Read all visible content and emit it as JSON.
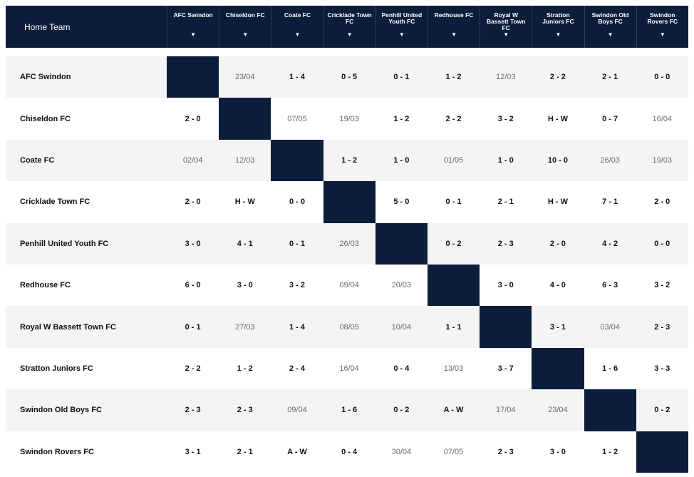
{
  "header": {
    "home_label": "Home Team",
    "columns": [
      "AFC Swindon",
      "Chiseldon FC",
      "Coate FC",
      "Cricklade Town FC",
      "Penhill United Youth FC",
      "Redhouse FC",
      "Royal W Bassett Town FC",
      "Stratton Juniors FC",
      "Swindon Old Boys FC",
      "Swindon Rovers FC"
    ],
    "sort_glyph": "▼"
  },
  "colors": {
    "navy": "#0b1d3a",
    "row_alt": "#f4f4f4",
    "date_text": "#6b6b6b"
  },
  "rows": [
    {
      "team": "AFC Swindon",
      "cells": [
        "",
        "23/04",
        "1 - 4",
        "0 - 5",
        "0 - 1",
        "1 - 2",
        "12/03",
        "2 - 2",
        "2 - 1",
        "0 - 0"
      ]
    },
    {
      "team": "Chiseldon FC",
      "cells": [
        "2 - 0",
        "",
        "07/05",
        "19/03",
        "1 - 2",
        "2 - 2",
        "3 - 2",
        "H - W",
        "0 - 7",
        "16/04"
      ]
    },
    {
      "team": "Coate FC",
      "cells": [
        "02/04",
        "12/03",
        "",
        "1 - 2",
        "1 - 0",
        "01/05",
        "1 - 0",
        "10 - 0",
        "26/03",
        "19/03"
      ]
    },
    {
      "team": "Cricklade Town FC",
      "cells": [
        "2 - 0",
        "H - W",
        "0 - 0",
        "",
        "5 - 0",
        "0 - 1",
        "2 - 1",
        "H - W",
        "7 - 1",
        "2 - 0"
      ]
    },
    {
      "team": "Penhill United Youth FC",
      "cells": [
        "3 - 0",
        "4 - 1",
        "0 - 1",
        "26/03",
        "",
        "0 - 2",
        "2 - 3",
        "2 - 0",
        "4 - 2",
        "0 - 0"
      ]
    },
    {
      "team": "Redhouse FC",
      "cells": [
        "6 - 0",
        "3 - 0",
        "3 - 2",
        "09/04",
        "20/03",
        "",
        "3 - 0",
        "4 - 0",
        "6 - 3",
        "3 - 2"
      ]
    },
    {
      "team": "Royal W Bassett Town FC",
      "cells": [
        "0 - 1",
        "27/03",
        "1 - 4",
        "08/05",
        "10/04",
        "1 - 1",
        "",
        "3 - 1",
        "03/04",
        "2 - 3"
      ]
    },
    {
      "team": "Stratton Juniors FC",
      "cells": [
        "2 - 2",
        "1 - 2",
        "2 - 4",
        "16/04",
        "0 - 4",
        "13/03",
        "3 - 7",
        "",
        "1 - 6",
        "3 - 3"
      ]
    },
    {
      "team": "Swindon Old Boys FC",
      "cells": [
        "2 - 3",
        "2 - 3",
        "09/04",
        "1 - 6",
        "0 - 2",
        "A - W",
        "17/04",
        "23/04",
        "",
        "0 - 2"
      ]
    },
    {
      "team": "Swindon Rovers FC",
      "cells": [
        "3 - 1",
        "2 - 1",
        "A - W",
        "0 - 4",
        "30/04",
        "07/05",
        "2 - 3",
        "3 - 0",
        "1 - 2",
        ""
      ]
    }
  ]
}
